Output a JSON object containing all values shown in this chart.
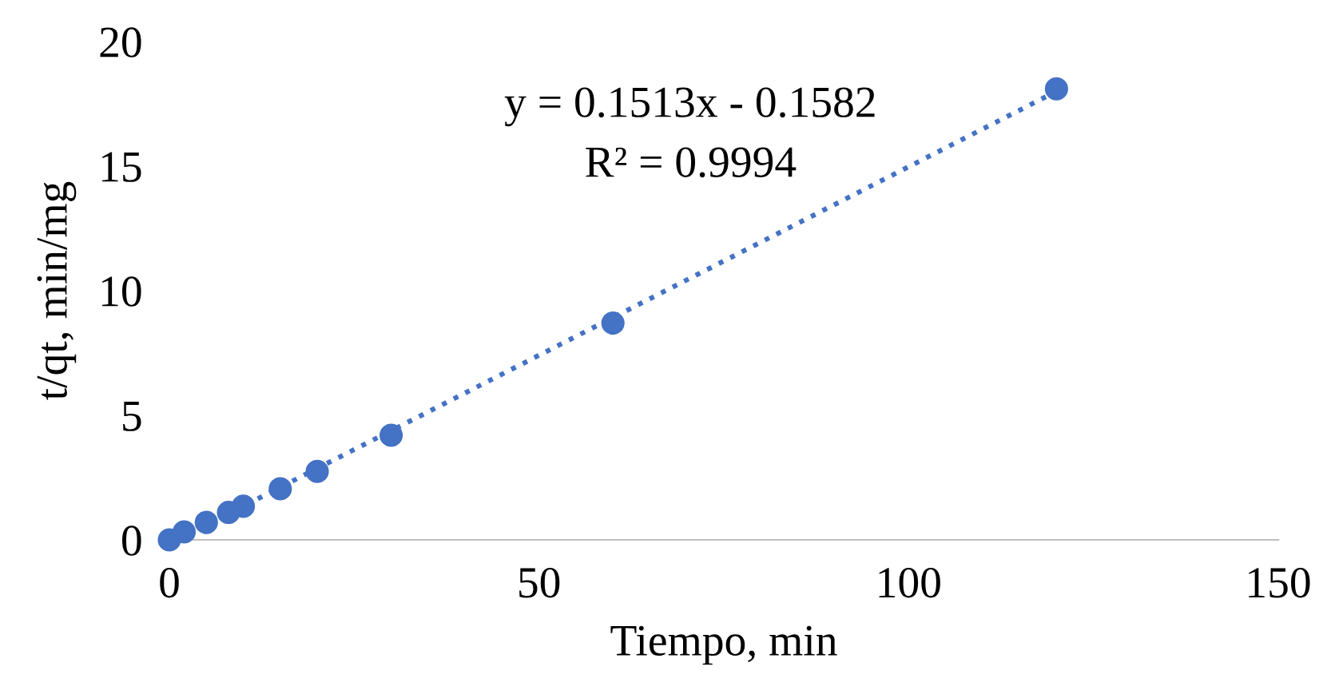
{
  "chart_data": {
    "type": "scatter",
    "xlabel": "Tiempo, min",
    "ylabel": "t/qt, min/mg",
    "annotations": [
      "y = 0.1513x - 0.1582",
      "R² = 0.9994"
    ],
    "xlim": [
      0,
      150
    ],
    "ylim": [
      0,
      20
    ],
    "xticks": [
      0,
      50,
      100,
      150
    ],
    "yticks": [
      0,
      5,
      10,
      15,
      20
    ],
    "grid": false,
    "legend": false,
    "marker": "circle",
    "series": [
      {
        "color": "#4472c4",
        "x": [
          0,
          2,
          5,
          8,
          10,
          15,
          20,
          30,
          60,
          120
        ],
        "values": [
          0.0,
          0.32,
          0.7,
          1.1,
          1.35,
          2.05,
          2.75,
          4.2,
          8.7,
          18.1
        ]
      },
      {
        "type": "line",
        "color": "#4472c4",
        "line_style": "dotted",
        "marker": "none",
        "x": [
          1.05,
          120
        ],
        "values": [
          0.0,
          18.0
        ]
      }
    ]
  }
}
